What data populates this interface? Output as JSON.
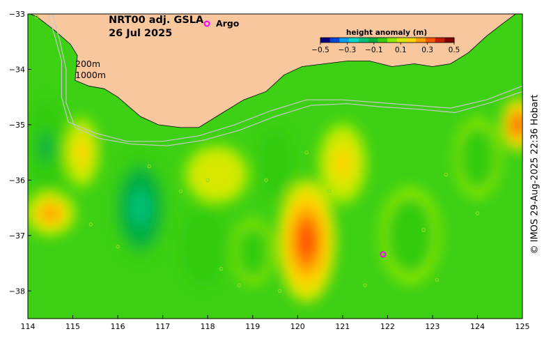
{
  "map": {
    "product": "NRT00 adj. GSLA",
    "date": "26 Jul 2025",
    "argo_label": "Argo",
    "isobath_labels": [
      "200m",
      "1000m"
    ],
    "credit": "© IMOS 29-Aug-2025 22:36 Hobart",
    "extent": {
      "lon": [
        114,
        125
      ],
      "lat": [
        -38.5,
        -33
      ]
    },
    "x_ticks": [
      114,
      115,
      116,
      117,
      118,
      119,
      120,
      121,
      122,
      123,
      124,
      125
    ],
    "y_ticks": [
      -33,
      -34,
      -35,
      -36,
      -37,
      -38
    ],
    "colors": {
      "land": "#f9c79e",
      "argo": "#ff00ff",
      "isobath": "#c8c8c8",
      "sea_base": "#3dd014"
    }
  },
  "colorbar": {
    "title": "height anomaly (m)",
    "range": [
      -0.5,
      0.5
    ],
    "tick_labels": [
      "-0.5",
      "-0.3",
      "-0.1",
      "0.1",
      "0.3",
      "0.5"
    ],
    "colors": [
      "#000080",
      "#0047d6",
      "#00a0f0",
      "#00d8c8",
      "#00c07a",
      "#00b040",
      "#33cc11",
      "#8de800",
      "#d8e800",
      "#ffd400",
      "#ff9c00",
      "#ff5500",
      "#c81e00",
      "#800000"
    ]
  },
  "chart_data": {
    "type": "heatmap",
    "field": "height anomaly (m)",
    "features": [
      {
        "lon": 114.4,
        "lat": -35.4,
        "sla": -0.08
      },
      {
        "lon": 115.2,
        "lat": -35.5,
        "sla": 0.17
      },
      {
        "lon": 114.5,
        "lat": -36.6,
        "sla": 0.22
      },
      {
        "lon": 116.5,
        "lat": -36.5,
        "sla": -0.18
      },
      {
        "lon": 118.2,
        "lat": -35.9,
        "sla": 0.14
      },
      {
        "lon": 117.9,
        "lat": -37.2,
        "sla": -0.07
      },
      {
        "lon": 119.0,
        "lat": -37.3,
        "sla": -0.05
      },
      {
        "lon": 119.5,
        "lat": -35.7,
        "sla": -0.07
      },
      {
        "lon": 120.2,
        "lat": -37.1,
        "sla": 0.3
      },
      {
        "lon": 121.0,
        "lat": -35.7,
        "sla": 0.18
      },
      {
        "lon": 122.5,
        "lat": -37.0,
        "sla": -0.06
      },
      {
        "lon": 124.0,
        "lat": -35.6,
        "sla": -0.05
      },
      {
        "lon": 124.9,
        "lat": -35.0,
        "sla": 0.3
      }
    ]
  }
}
